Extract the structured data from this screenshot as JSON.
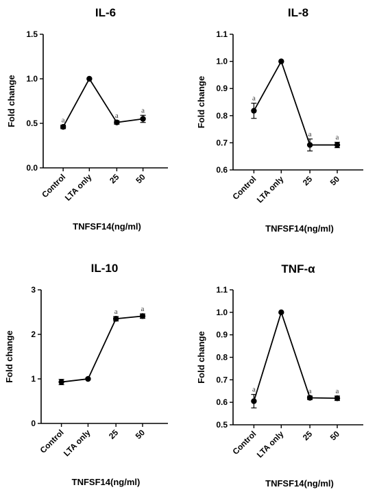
{
  "chart_data": [
    {
      "type": "line",
      "title": "IL-6",
      "ylabel": "Fold change",
      "xlabel": "TNFSF14(ng/ml)",
      "categories": [
        "Control",
        "LTA only",
        "25",
        "50"
      ],
      "values": [
        0.46,
        1.0,
        0.51,
        0.55
      ],
      "errors": [
        0.02,
        0.0,
        0.02,
        0.04
      ],
      "annotations": [
        "a",
        "",
        "a",
        "a"
      ],
      "ylim": [
        0.0,
        1.5
      ],
      "yticks": [
        "0.0",
        "0.5",
        "1.0",
        "1.5"
      ]
    },
    {
      "type": "line",
      "title": "IL-8",
      "ylabel": "Fold change",
      "xlabel": "TNFSF14(ng/ml)",
      "categories": [
        "Control",
        "LTA only",
        "25",
        "50"
      ],
      "values": [
        0.818,
        1.0,
        0.692,
        0.692
      ],
      "errors": [
        0.028,
        0.0,
        0.022,
        0.01
      ],
      "annotations": [
        "a",
        "",
        "a",
        "a"
      ],
      "ylim": [
        0.6,
        1.1
      ],
      "yticks": [
        "0.6",
        "0.7",
        "0.8",
        "0.9",
        "1.0",
        "1.1"
      ]
    },
    {
      "type": "line",
      "title": "IL-10",
      "ylabel": "Fold change",
      "xlabel": "TNFSF14(ng/ml)",
      "categories": [
        "Control",
        "LTA only",
        "25",
        "50"
      ],
      "values": [
        0.93,
        1.0,
        2.35,
        2.41
      ],
      "errors": [
        0.06,
        0.0,
        0.05,
        0.05
      ],
      "annotations": [
        "",
        "",
        "a",
        "a"
      ],
      "ylim": [
        0,
        3
      ],
      "yticks": [
        "0",
        "1",
        "2",
        "3"
      ]
    },
    {
      "type": "line",
      "title": "TNF-α",
      "ylabel": "Fold change",
      "xlabel": "TNFSF14(ng/ml)",
      "categories": [
        "Control",
        "LTA only",
        "25",
        "50"
      ],
      "values": [
        0.605,
        1.0,
        0.62,
        0.618
      ],
      "errors": [
        0.03,
        0.0,
        0.008,
        0.01
      ],
      "annotations": [
        "a",
        "",
        "a",
        "a"
      ],
      "ylim": [
        0.5,
        1.1
      ],
      "yticks": [
        "0.5",
        "0.6",
        "0.7",
        "0.8",
        "0.9",
        "1.0",
        "1.1"
      ]
    }
  ]
}
